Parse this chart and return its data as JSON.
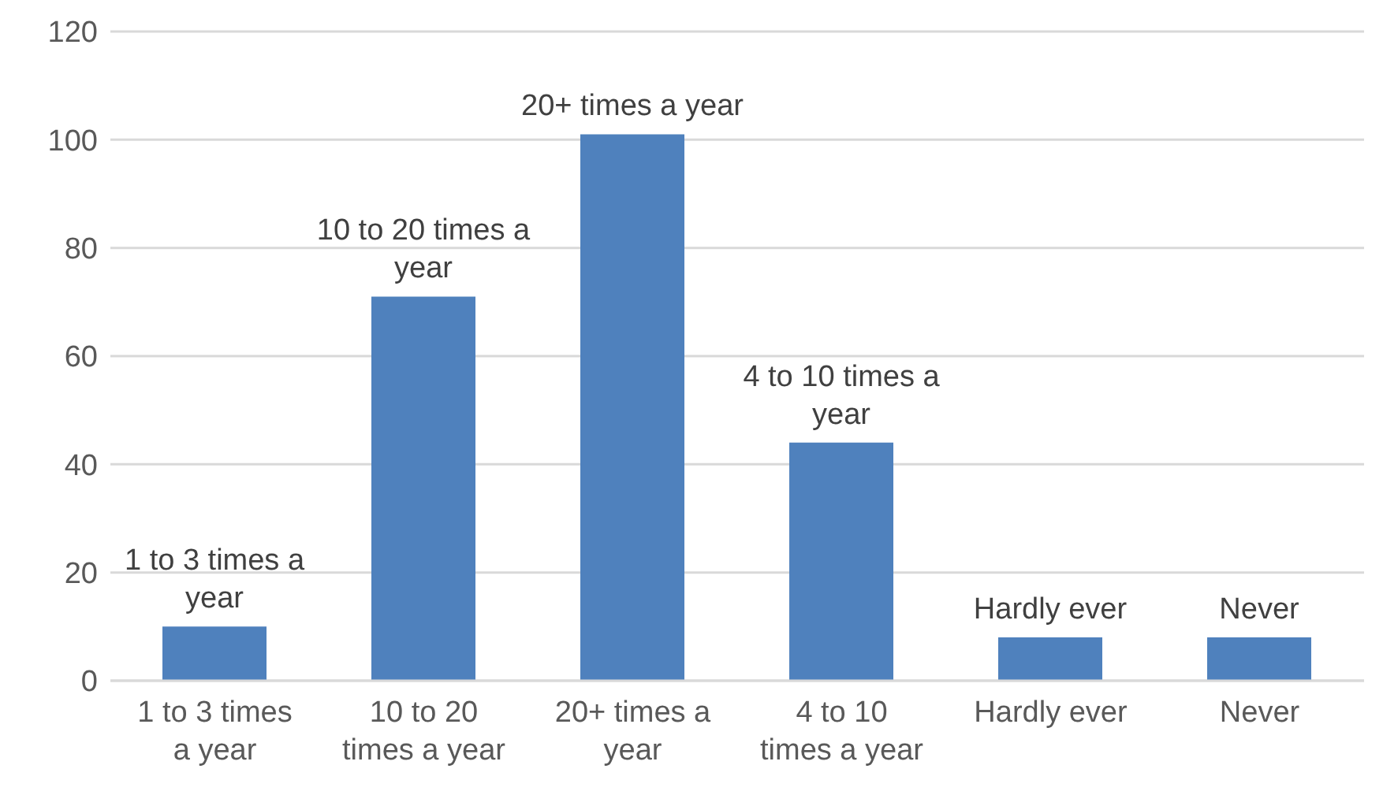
{
  "chart_data": {
    "type": "bar",
    "categories": [
      "1 to 3 times a year",
      "10 to 20 times a year",
      "20+ times a year",
      "4 to 10 times a year",
      "Hardly ever",
      "Never"
    ],
    "values": [
      10,
      71,
      101,
      44,
      8,
      8
    ],
    "annotations": [
      "1 to 3 times a year",
      "10 to 20 times a year",
      "20+ times a year",
      "4 to 10 times a year",
      "Hardly ever",
      "Never"
    ],
    "color": "#4f81bd",
    "ylim": [
      0,
      120
    ],
    "yticks": [
      0,
      20,
      40,
      60,
      80,
      100,
      120
    ],
    "grid": "y"
  }
}
